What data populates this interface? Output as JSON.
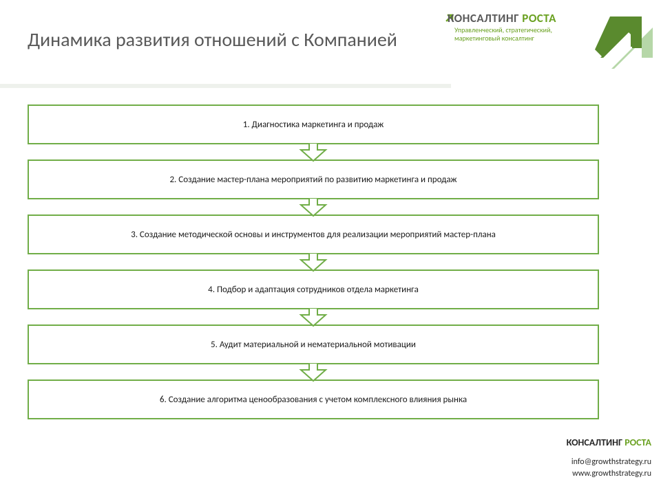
{
  "title": "Динамика развития отношений с Компанией",
  "logo": {
    "word1": "КОНСАЛТИНГ",
    "word2": "РОСТА",
    "subtitle_line1": "Управленческий, стратегический,",
    "subtitle_line2": "маркетинговый консалтинг"
  },
  "flowchart": {
    "type": "flowchart",
    "box_border_color": "#70ad47",
    "box_bg_color": "#ffffff",
    "box_text_color": "#1a1a1a",
    "box_font_size": 13,
    "arrow_fill": "#ffffff",
    "arrow_stroke": "#70ad47",
    "steps": [
      "1. Диагностика маркетинга и продаж",
      "2. Создание мастер-плана мероприятий по развитию маркетинга и продаж",
      "3. Создание методической основы и инструментов для реализации мероприятий мастер-плана",
      "4. Подбор и адаптация сотрудников отдела маркетинга",
      "5. Аудит материальной и нематериальной мотивации",
      "6. Создание алгоритма ценообразования с учетом комплексного влияния рынка"
    ]
  },
  "footer": {
    "brand_word1": "КОНСАЛТИНГ",
    "brand_word2": "РОСТА",
    "email": "info@growthstrategy.ru",
    "url": "www.growthstrategy.ru"
  },
  "colors": {
    "title_color": "#595959",
    "accent_green": "#6aa121",
    "arrow_dark": "#5a8a2e",
    "arrow_light": "#b6d7a8",
    "underline": "#eef1ec",
    "background": "#ffffff"
  }
}
